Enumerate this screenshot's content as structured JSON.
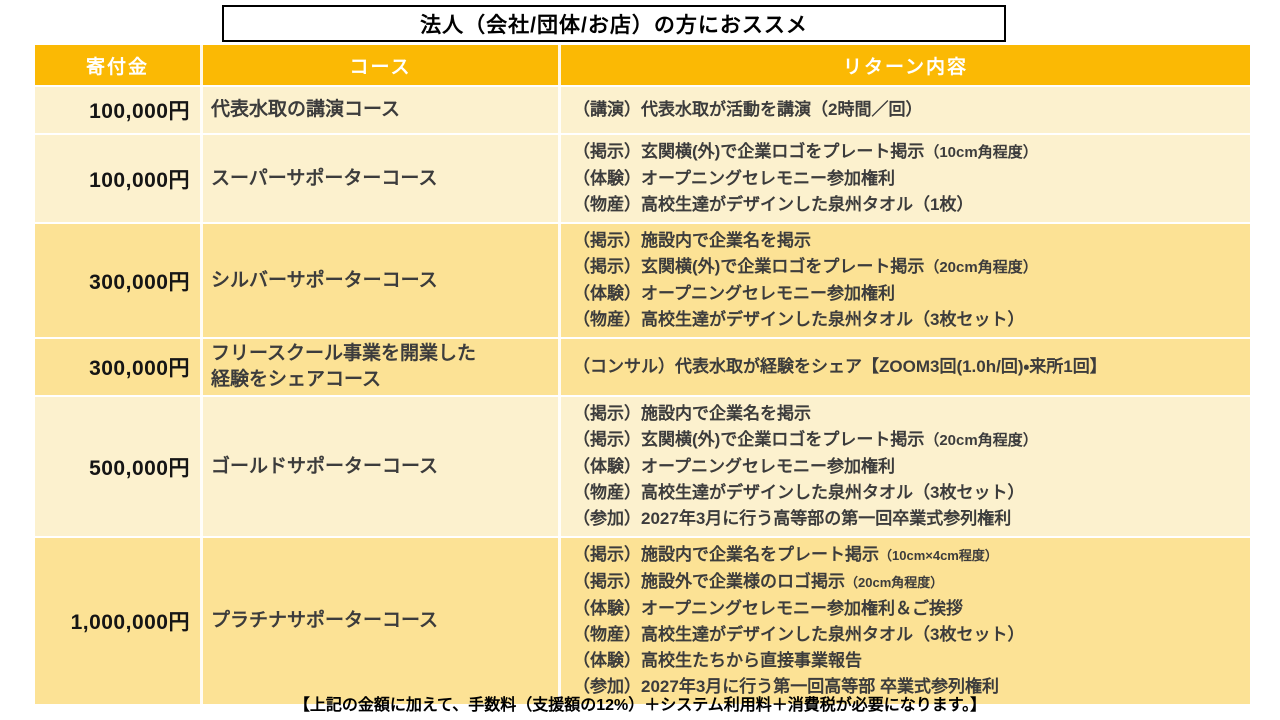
{
  "title": "法人（会社/団体/お店）の方におススメ",
  "table": {
    "headers": [
      "寄付金",
      "コース",
      "リターン内容"
    ],
    "rows": [
      {
        "amount": "100,000円",
        "course": "代表水取の講演コース",
        "tone": "light",
        "returns": [
          {
            "text": "（講演）代表水取が活動を講演（2時間／回）"
          }
        ]
      },
      {
        "amount": "100,000円",
        "course": "スーパーサポーターコース",
        "tone": "light",
        "returns": [
          {
            "text": "（掲示）玄関横(外)で企業ロゴをプレート掲示",
            "note": "（10cm角程度）",
            "note_size": "s"
          },
          {
            "text": "（体験）オープニングセレモニー参加権利"
          },
          {
            "text": "（物産）高校生達がデザインした泉州タオル（1枚）"
          }
        ]
      },
      {
        "amount": "300,000円",
        "course": "シルバーサポーターコース",
        "tone": "dark",
        "returns": [
          {
            "text": "（掲示）施設内で企業名を掲示"
          },
          {
            "text": "（掲示）玄関横(外)で企業ロゴをプレート掲示",
            "note": "（20cm角程度）",
            "note_size": "s"
          },
          {
            "text": "（体験）オープニングセレモニー参加権利"
          },
          {
            "text": "（物産）高校生達がデザインした泉州タオル（3枚セット）"
          }
        ]
      },
      {
        "amount": "300,000円",
        "course": "フリースクール事業を開業した\n経験をシェアコース",
        "tone": "dark",
        "returns": [
          {
            "text": "（コンサル）代表水取が経験をシェア【ZOOM3回(1.0h/回)・来所1回】"
          }
        ]
      },
      {
        "amount": "500,000円",
        "course": "ゴールドサポーターコース",
        "tone": "light",
        "returns": [
          {
            "text": "（掲示）施設内で企業名を掲示"
          },
          {
            "text": "（掲示）玄関横(外)で企業ロゴをプレート掲示",
            "note": "（20cm角程度）",
            "note_size": "s"
          },
          {
            "text": "（体験）オープニングセレモニー参加権利"
          },
          {
            "text": "（物産）高校生達がデザインした泉州タオル（3枚セット）"
          },
          {
            "text": "（参加）2027年3月に行う高等部の第一回卒業式参列権利"
          }
        ]
      },
      {
        "amount": "1,000,000円",
        "course": "プラチナサポーターコース",
        "tone": "dark",
        "returns": [
          {
            "text": "（掲示）施設内で企業名をプレート掲示",
            "note": "（10cm×4cm程度）",
            "note_size": "xs"
          },
          {
            "text": "（掲示）施設外で企業様のロゴ掲示",
            "note": "（20cm角程度）",
            "note_size": "xs"
          },
          {
            "text": "（体験）オープニングセレモニー参加権利＆ご挨拶"
          },
          {
            "text": "（物産）高校生達がデザインした泉州タオル（3枚セット）"
          },
          {
            "text": "（体験）高校生たちから直接事業報告"
          },
          {
            "text": "（参加）2027年3月に行う第一回高等部 卒業式参列権利"
          }
        ]
      }
    ]
  },
  "footer": "【上記の金額に加えて、手数料（支援額の12%）＋システム利用料＋消費税が必要になります。】",
  "colors": {
    "header_bg": "#fbb904",
    "header_text": "#ffffff",
    "row_light": "#fcf1ce",
    "row_dark": "#fce295",
    "body_text": "#3c3c3c"
  }
}
